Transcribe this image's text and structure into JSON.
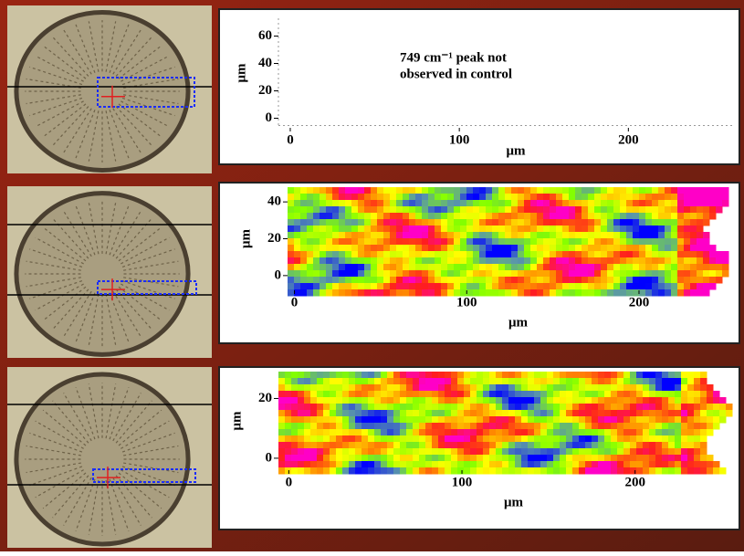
{
  "chart_data": [
    {
      "type": "map",
      "annotation": [
        "749 cm⁻¹ peak not",
        "observed in control"
      ],
      "xlabel": "μm",
      "ylabel": "μm",
      "xlim": [
        -7,
        263
      ],
      "xticks": [
        0,
        100,
        200
      ],
      "ylim": [
        -7,
        73
      ],
      "yticks": [
        0,
        20,
        40,
        60
      ]
    },
    {
      "type": "map",
      "xlabel": "μm",
      "ylabel": "μm",
      "xlim": [
        -4,
        253
      ],
      "xticks": [
        0,
        100,
        200
      ],
      "ylim": [
        -8,
        48
      ],
      "yticks": [
        0,
        20,
        40
      ]
    },
    {
      "type": "map",
      "xlabel": "μm",
      "ylabel": "μm",
      "xlim": [
        -6,
        255
      ],
      "xticks": [
        0,
        100,
        200
      ],
      "ylim": [
        -4,
        29
      ],
      "yticks": [
        0,
        20
      ]
    }
  ]
}
